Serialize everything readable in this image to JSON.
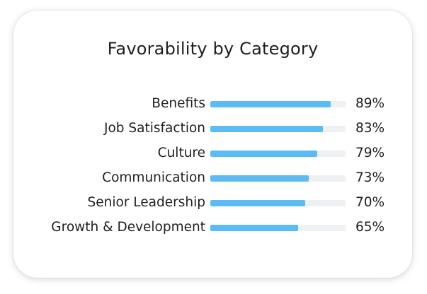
{
  "chart_data": {
    "type": "bar",
    "orientation": "horizontal",
    "title": "Favorability by Category",
    "categories": [
      "Benefits",
      "Job Satisfaction",
      "Culture",
      "Communication",
      "Senior Leadership",
      "Growth & Development"
    ],
    "values": [
      89,
      83,
      79,
      73,
      70,
      65
    ],
    "value_labels": [
      "89%",
      "83%",
      "79%",
      "73%",
      "70%",
      "65%"
    ],
    "xlim": [
      0,
      100
    ],
    "grid": false,
    "legend": "none",
    "colors": {
      "bar": "#5bbcf5",
      "track": "#eef1f4",
      "text": "#1f1f1f"
    }
  }
}
